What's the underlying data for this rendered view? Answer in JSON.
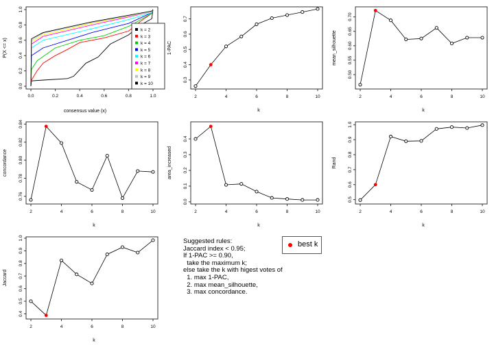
{
  "chart_data": [
    {
      "type": "line",
      "xlabel": "consensus value (x)",
      "ylabel": "P(X <= x)",
      "xlim": [
        0,
        1
      ],
      "ylim": [
        0,
        1
      ],
      "xticks": [
        "0.0",
        "0.2",
        "0.4",
        "0.6",
        "0.8",
        "1.0"
      ],
      "yticks": [
        "0.0",
        "0.2",
        "0.4",
        "0.6",
        "0.8",
        "1.0"
      ],
      "legend_position": "right",
      "series": [
        {
          "name": "k = 2",
          "color": "#000000",
          "points": [
            [
              0,
              0
            ],
            [
              0.005,
              0.07
            ],
            [
              0.1,
              0.08
            ],
            [
              0.3,
              0.1
            ],
            [
              0.35,
              0.13
            ],
            [
              0.45,
              0.3
            ],
            [
              0.55,
              0.38
            ],
            [
              0.65,
              0.55
            ],
            [
              0.8,
              0.67
            ],
            [
              0.9,
              0.8
            ],
            [
              0.99,
              0.88
            ],
            [
              1,
              1
            ]
          ]
        },
        {
          "name": "k = 3",
          "color": "#ff0000",
          "points": [
            [
              0,
              0
            ],
            [
              0.005,
              0.08
            ],
            [
              0.05,
              0.2
            ],
            [
              0.1,
              0.3
            ],
            [
              0.2,
              0.4
            ],
            [
              0.3,
              0.48
            ],
            [
              0.4,
              0.57
            ],
            [
              0.6,
              0.63
            ],
            [
              0.8,
              0.72
            ],
            [
              0.9,
              0.85
            ],
            [
              0.99,
              0.95
            ],
            [
              1,
              1
            ]
          ]
        },
        {
          "name": "k = 4",
          "color": "#00cd00",
          "points": [
            [
              0,
              0
            ],
            [
              0.005,
              0.22
            ],
            [
              0.05,
              0.33
            ],
            [
              0.2,
              0.5
            ],
            [
              0.4,
              0.6
            ],
            [
              0.6,
              0.66
            ],
            [
              0.8,
              0.78
            ],
            [
              0.99,
              0.95
            ],
            [
              1,
              1
            ]
          ]
        },
        {
          "name": "k = 5",
          "color": "#0000ff",
          "points": [
            [
              0,
              0
            ],
            [
              0.005,
              0.4
            ],
            [
              0.1,
              0.5
            ],
            [
              0.3,
              0.6
            ],
            [
              0.5,
              0.7
            ],
            [
              0.8,
              0.82
            ],
            [
              0.99,
              0.96
            ],
            [
              1,
              1
            ]
          ]
        },
        {
          "name": "k = 6",
          "color": "#00ffff",
          "points": [
            [
              0,
              0
            ],
            [
              0.005,
              0.5
            ],
            [
              0.1,
              0.6
            ],
            [
              0.5,
              0.75
            ],
            [
              0.8,
              0.87
            ],
            [
              0.99,
              0.96
            ],
            [
              1,
              1
            ]
          ]
        },
        {
          "name": "k = 7",
          "color": "#ff00ff",
          "points": [
            [
              0,
              0
            ],
            [
              0.005,
              0.55
            ],
            [
              0.1,
              0.65
            ],
            [
              0.5,
              0.8
            ],
            [
              0.99,
              0.97
            ],
            [
              1,
              1
            ]
          ]
        },
        {
          "name": "k = 8",
          "color": "#ffff00",
          "points": [
            [
              0,
              0
            ],
            [
              0.005,
              0.58
            ],
            [
              0.1,
              0.67
            ],
            [
              0.5,
              0.82
            ],
            [
              0.99,
              0.97
            ],
            [
              1,
              1
            ]
          ]
        },
        {
          "name": "k = 9",
          "color": "#bebebe",
          "points": [
            [
              0,
              0
            ],
            [
              0.005,
              0.6
            ],
            [
              0.1,
              0.69
            ],
            [
              0.5,
              0.83
            ],
            [
              0.99,
              0.97
            ],
            [
              1,
              1
            ]
          ]
        },
        {
          "name": "k = 10",
          "color": "#000000",
          "points": [
            [
              0,
              0
            ],
            [
              0.005,
              0.62
            ],
            [
              0.1,
              0.7
            ],
            [
              0.5,
              0.84
            ],
            [
              0.99,
              0.98
            ],
            [
              1,
              1
            ]
          ]
        }
      ]
    },
    {
      "type": "line",
      "xlabel": "k",
      "ylabel": "1-PAC",
      "x": [
        2,
        3,
        4,
        5,
        6,
        7,
        8,
        9,
        10
      ],
      "y": [
        0.26,
        0.4,
        0.52,
        0.585,
        0.665,
        0.705,
        0.725,
        0.745,
        0.765
      ],
      "best_index": 1,
      "ylim": [
        0.25,
        0.77
      ],
      "yticks": [
        0.3,
        0.4,
        0.5,
        0.6,
        0.7
      ],
      "ytick_labels": [
        "0.3",
        "0.4",
        "0.5",
        "0.6",
        "0.7"
      ]
    },
    {
      "type": "line",
      "xlabel": "k",
      "ylabel": "mean_silhouette",
      "x": [
        2,
        3,
        4,
        5,
        6,
        7,
        8,
        9,
        10
      ],
      "y": [
        0.465,
        0.722,
        0.688,
        0.622,
        0.625,
        0.662,
        0.608,
        0.628,
        0.628
      ],
      "best_index": 1,
      "ylim": [
        0.455,
        0.73
      ],
      "yticks": [
        0.5,
        0.55,
        0.6,
        0.65,
        0.7
      ],
      "ytick_labels": [
        "0.50",
        "0.55",
        "0.60",
        "0.65",
        "0.70"
      ]
    },
    {
      "type": "line",
      "xlabel": "k",
      "ylabel": "concordance",
      "x": [
        2,
        3,
        4,
        5,
        6,
        7,
        8,
        9,
        10
      ],
      "y": [
        0.756,
        0.8375,
        0.819,
        0.776,
        0.767,
        0.805,
        0.758,
        0.788,
        0.787
      ],
      "best_index": 1,
      "ylim": [
        0.753,
        0.841
      ],
      "yticks": [
        0.76,
        0.78,
        0.8,
        0.82,
        0.84
      ],
      "ytick_labels": [
        "0.76",
        "0.78",
        "0.80",
        "0.82",
        "0.84"
      ]
    },
    {
      "type": "line",
      "xlabel": "k",
      "ylabel": "area_increased",
      "x": [
        2,
        3,
        4,
        5,
        6,
        7,
        8,
        9,
        10
      ],
      "y": [
        0.4,
        0.48,
        0.108,
        0.114,
        0.065,
        0.025,
        0.018,
        0.012,
        0.012
      ],
      "best_index": 1,
      "ylim": [
        -0.005,
        0.5
      ],
      "yticks": [
        0,
        0.1,
        0.2,
        0.3,
        0.4
      ],
      "ytick_labels": [
        "0.0",
        "0.1",
        "0.2",
        "0.3",
        "0.4"
      ]
    },
    {
      "type": "line",
      "xlabel": "k",
      "ylabel": "Rand",
      "x": [
        2,
        3,
        4,
        5,
        6,
        7,
        8,
        9,
        10
      ],
      "y": [
        0.497,
        0.6,
        0.921,
        0.89,
        0.892,
        0.972,
        0.984,
        0.978,
        0.997
      ],
      "best_index": 1,
      "ylim": [
        0.48,
        1.01
      ],
      "yticks": [
        0.5,
        0.6,
        0.7,
        0.8,
        0.9,
        1.0
      ],
      "ytick_labels": [
        "0.5",
        "0.6",
        "0.7",
        "0.8",
        "0.9",
        "1.0"
      ]
    },
    {
      "type": "line",
      "xlabel": "k",
      "ylabel": "Jaccard",
      "x": [
        2,
        3,
        4,
        5,
        6,
        7,
        8,
        9,
        10
      ],
      "y": [
        0.5,
        0.388,
        0.824,
        0.713,
        0.641,
        0.872,
        0.929,
        0.886,
        0.984
      ],
      "best_index": 1,
      "ylim": [
        0.37,
        1.0
      ],
      "yticks": [
        0.4,
        0.5,
        0.6,
        0.7,
        0.8,
        0.9,
        1.0
      ],
      "ytick_labels": [
        "0.4",
        "0.5",
        "0.6",
        "0.7",
        "0.8",
        "0.9",
        "1.0"
      ]
    }
  ],
  "xtick_labels": [
    "2",
    "4",
    "6",
    "8",
    "10"
  ],
  "best_color": "#ff0000",
  "rules_text": "Suggested rules:\nJaccard index < 0.95;\nIf 1-PAC >= 0.90,\n  take the maximum k;\nelse take the k with higest votes of\n  1. max 1-PAC,\n  2. max mean_silhouette,\n  3. max concordance.",
  "legend_label": "best k"
}
